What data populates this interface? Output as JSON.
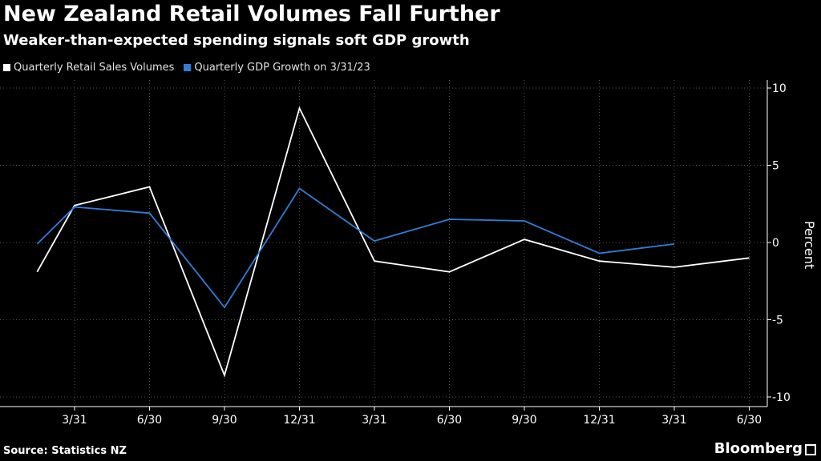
{
  "title": "New Zealand Retail Volumes Fall Further",
  "subtitle": "Weaker-than-expected spending signals soft GDP growth",
  "footer": {
    "source": "Source:  Statistics NZ",
    "brand": "Bloomberg"
  },
  "colors": {
    "background": "#000000",
    "retail": "#ffffff",
    "gdp": "#2f7ed8",
    "grid": "#555555"
  },
  "chart_data": {
    "type": "line",
    "title": "New Zealand Retail Volumes Fall Further",
    "xlabel": "",
    "ylabel": "Percent",
    "ylim": [
      -10,
      10
    ],
    "yticks": [
      10,
      5,
      0,
      -5,
      -10
    ],
    "ytick_labels": [
      "10",
      "5",
      "0",
      "-5",
      "-10"
    ],
    "grid": true,
    "legend_position": "top-left",
    "categories": [
      "3/31",
      "6/30",
      "9/30",
      "12/31",
      "3/31",
      "6/30",
      "9/30",
      "12/31",
      "3/31",
      "6/30"
    ],
    "x": [
      -0.5,
      0,
      1,
      2,
      3,
      4,
      5,
      6,
      7,
      8,
      9
    ],
    "series": [
      {
        "name": "Quarterly Retail Sales Volumes",
        "color": "#ffffff",
        "values": [
          -1.9,
          2.4,
          3.6,
          -8.6,
          8.7,
          -1.2,
          -1.9,
          0.2,
          -1.2,
          -1.6,
          -1.0
        ]
      },
      {
        "name": "Quarterly GDP Growth on 3/31/23",
        "color": "#2f7ed8",
        "values": [
          -0.1,
          2.3,
          1.9,
          -4.2,
          3.5,
          0.1,
          1.5,
          1.4,
          -0.7,
          -0.1,
          null
        ]
      }
    ]
  }
}
